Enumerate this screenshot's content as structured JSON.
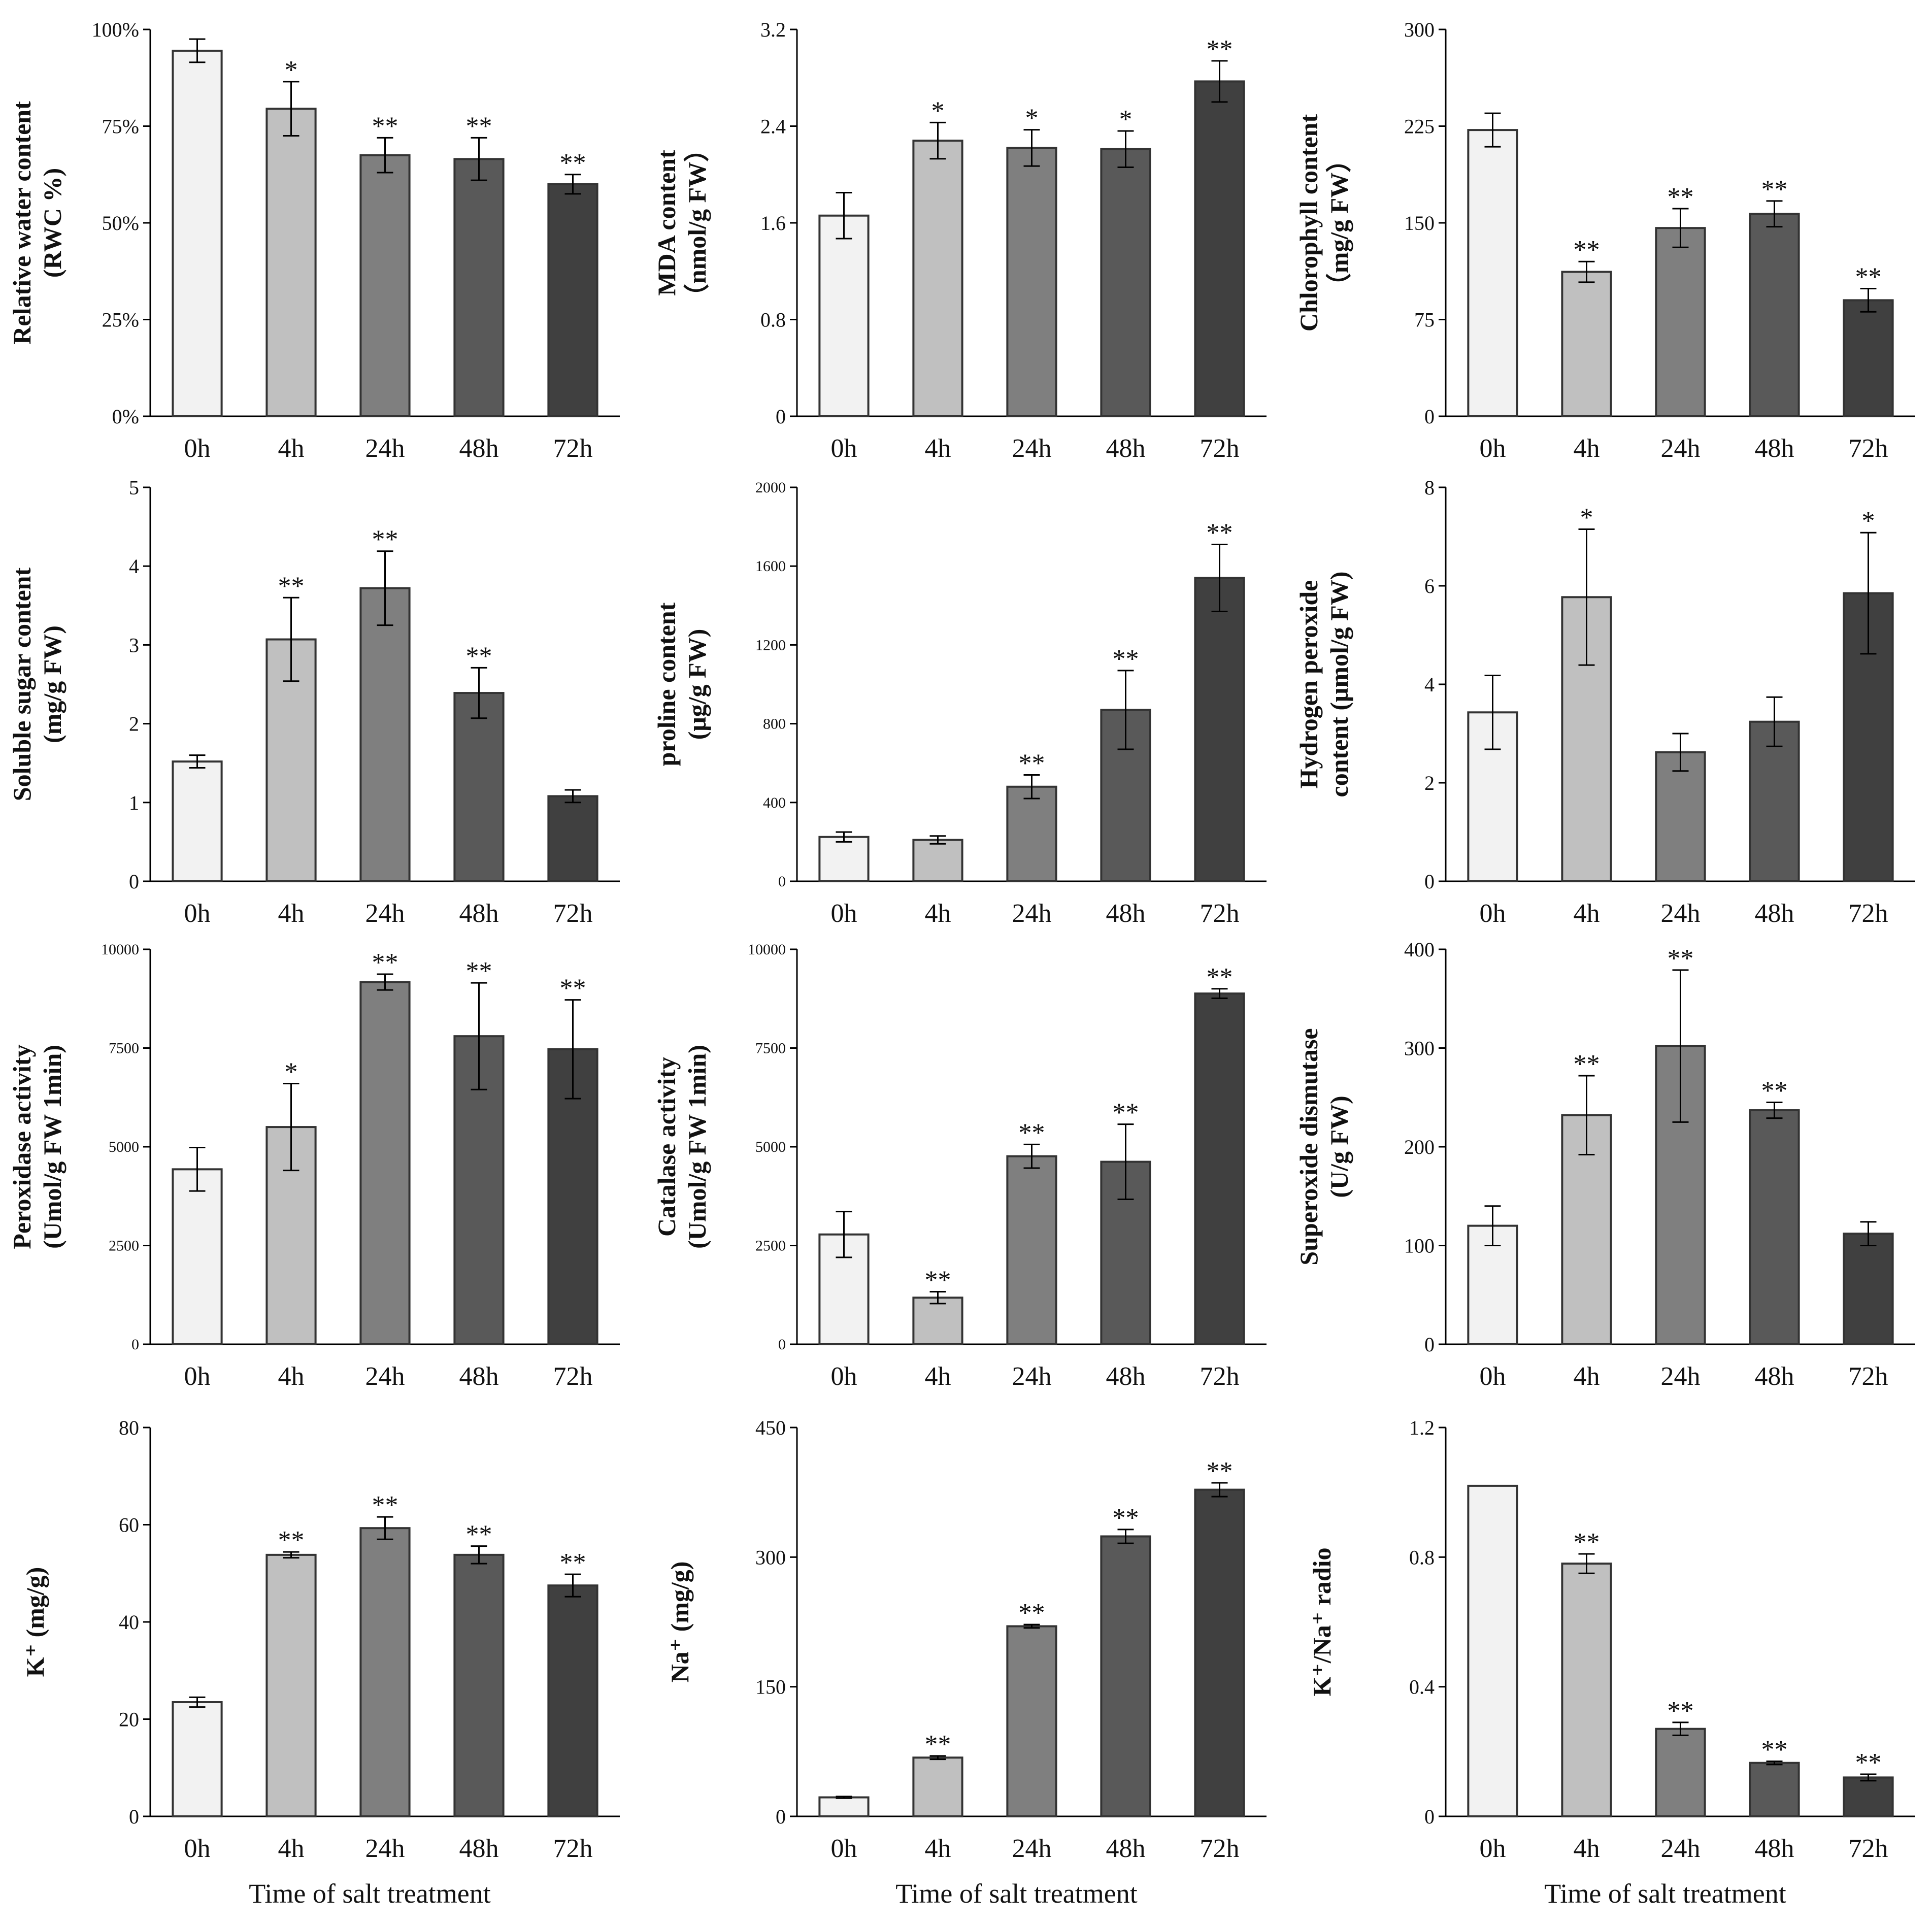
{
  "figure": {
    "categories": [
      "0h",
      "4h",
      "24h",
      "48h",
      "72h"
    ],
    "xlabel": "Time of salt treatment",
    "bar_colors": [
      "#f2f2f2",
      "#c0c0c0",
      "#7f7f7f",
      "#595959",
      "#404040"
    ]
  },
  "chart_data": [
    {
      "type": "bar",
      "id": "rwc",
      "ylabel_lines": [
        "Relative water content",
        "(RWC %)"
      ],
      "ylim": [
        0,
        100
      ],
      "ticks": [
        0,
        25,
        50,
        75,
        100
      ],
      "tick_labels": [
        "0%",
        "25%",
        "50%",
        "75%",
        "100%"
      ],
      "categories": [
        "0h",
        "4h",
        "24h",
        "48h",
        "72h"
      ],
      "values": [
        94.5,
        79.5,
        67.5,
        66.5,
        60.0
      ],
      "errors": [
        3.0,
        7.0,
        4.5,
        5.5,
        2.5
      ],
      "significance": [
        "",
        "*",
        "**",
        "**",
        "**"
      ]
    },
    {
      "type": "bar",
      "id": "mda",
      "ylabel_lines": [
        "MDA content",
        "（nmol/g FW）"
      ],
      "ylim": [
        0,
        3.2
      ],
      "ticks": [
        0,
        0.8,
        1.6,
        2.4,
        3.2
      ],
      "tick_labels": [
        "0",
        "0.8",
        "1.6",
        "2.4",
        "3.2"
      ],
      "categories": [
        "0h",
        "4h",
        "24h",
        "48h",
        "72h"
      ],
      "values": [
        1.66,
        2.28,
        2.22,
        2.21,
        2.77
      ],
      "errors": [
        0.19,
        0.15,
        0.15,
        0.15,
        0.17
      ],
      "significance": [
        "",
        "*",
        "*",
        "*",
        "**"
      ]
    },
    {
      "type": "bar",
      "id": "chlorophyll",
      "ylabel_lines": [
        "Chlorophyll content",
        "（mg/g FW）"
      ],
      "ylim": [
        0,
        300
      ],
      "ticks": [
        0,
        75,
        150,
        225,
        300
      ],
      "tick_labels": [
        "0",
        "75",
        "150",
        "225",
        "300"
      ],
      "categories": [
        "0h",
        "4h",
        "24h",
        "48h",
        "72h"
      ],
      "values": [
        222,
        112,
        146,
        157,
        90
      ],
      "errors": [
        13,
        8,
        15,
        10,
        9
      ],
      "significance": [
        "",
        "**",
        "**",
        "**",
        "**"
      ]
    },
    {
      "type": "bar",
      "id": "soluble-sugar",
      "ylabel_lines": [
        "Soluble sugar content",
        "(mg/g FW)"
      ],
      "ylim": [
        0,
        5
      ],
      "ticks": [
        0,
        1,
        2,
        3,
        4,
        5
      ],
      "tick_labels": [
        "0",
        "1",
        "2",
        "3",
        "4",
        "5"
      ],
      "categories": [
        "0h",
        "4h",
        "24h",
        "48h",
        "72h"
      ],
      "values": [
        1.52,
        3.07,
        3.72,
        2.39,
        1.08
      ],
      "errors": [
        0.08,
        0.53,
        0.47,
        0.32,
        0.08
      ],
      "significance": [
        "",
        "**",
        "**",
        "**",
        ""
      ]
    },
    {
      "type": "bar",
      "id": "proline",
      "ylabel_lines": [
        "proline content",
        "(μg/g FW)"
      ],
      "ylim": [
        0,
        2000
      ],
      "ticks": [
        0,
        400,
        800,
        1200,
        1600,
        2000
      ],
      "tick_labels": [
        "0",
        "400",
        "800",
        "1200",
        "1600",
        "2000"
      ],
      "categories": [
        "0h",
        "4h",
        "24h",
        "48h",
        "72h"
      ],
      "values": [
        225,
        210,
        480,
        870,
        1540
      ],
      "errors": [
        25,
        20,
        60,
        200,
        170
      ],
      "significance": [
        "",
        "",
        "**",
        "**",
        "**"
      ]
    },
    {
      "type": "bar",
      "id": "h2o2",
      "ylabel_lines": [
        "Hydrogen peroxide",
        "content (μmol/g FW)"
      ],
      "ylim": [
        0,
        8
      ],
      "ticks": [
        0,
        2,
        4,
        6,
        8
      ],
      "tick_labels": [
        "0",
        "2",
        "4",
        "6",
        "8"
      ],
      "categories": [
        "0h",
        "4h",
        "24h",
        "48h",
        "72h"
      ],
      "values": [
        3.43,
        5.77,
        2.62,
        3.24,
        5.85
      ],
      "errors": [
        0.75,
        1.38,
        0.38,
        0.5,
        1.23
      ],
      "significance": [
        "",
        "*",
        "",
        "",
        "*"
      ]
    },
    {
      "type": "bar",
      "id": "peroxidase",
      "ylabel_lines": [
        "Peroxidase activity",
        "(Umol/g FW 1min)"
      ],
      "ylim": [
        0,
        10000
      ],
      "ticks": [
        0,
        2500,
        5000,
        7500,
        10000
      ],
      "tick_labels": [
        "0",
        "2500",
        "5000",
        "7500",
        "10000"
      ],
      "categories": [
        "0h",
        "4h",
        "24h",
        "48h",
        "72h"
      ],
      "values": [
        4430,
        5500,
        9170,
        7800,
        7470
      ],
      "errors": [
        550,
        1100,
        200,
        1350,
        1250
      ],
      "significance": [
        "",
        "*",
        "**",
        "**",
        "**"
      ]
    },
    {
      "type": "bar",
      "id": "catalase",
      "ylabel_lines": [
        "Catalase activity",
        "(Umol/g FW 1min)"
      ],
      "ylim": [
        0,
        10000
      ],
      "ticks": [
        0,
        2500,
        5000,
        7500,
        10000
      ],
      "tick_labels": [
        "0",
        "2500",
        "5000",
        "7500",
        "10000"
      ],
      "categories": [
        "0h",
        "4h",
        "24h",
        "48h",
        "72h"
      ],
      "values": [
        2780,
        1180,
        4760,
        4620,
        8880
      ],
      "errors": [
        580,
        150,
        300,
        950,
        120
      ],
      "significance": [
        "",
        "**",
        "**",
        "**",
        "**"
      ]
    },
    {
      "type": "bar",
      "id": "sod",
      "ylabel_lines": [
        "Superoxide dismutase",
        "(U/g FW)"
      ],
      "ylim": [
        0,
        400
      ],
      "ticks": [
        0,
        100,
        200,
        300,
        400
      ],
      "tick_labels": [
        "0",
        "100",
        "200",
        "300",
        "400"
      ],
      "categories": [
        "0h",
        "4h",
        "24h",
        "48h",
        "72h"
      ],
      "values": [
        120,
        232,
        302,
        237,
        112
      ],
      "errors": [
        20,
        40,
        77,
        8,
        12
      ],
      "significance": [
        "",
        "**",
        "**",
        "**",
        ""
      ]
    },
    {
      "type": "bar",
      "id": "k",
      "ylabel_lines": [
        "K⁺ (mg/g)"
      ],
      "ylim": [
        0,
        80
      ],
      "ticks": [
        0,
        20,
        40,
        60,
        80
      ],
      "tick_labels": [
        "0",
        "20",
        "40",
        "60",
        "80"
      ],
      "categories": [
        "0h",
        "4h",
        "24h",
        "48h",
        "72h"
      ],
      "values": [
        23.5,
        53.8,
        59.3,
        53.8,
        47.5
      ],
      "errors": [
        1.0,
        0.6,
        2.3,
        1.8,
        2.3
      ],
      "significance": [
        "",
        "**",
        "**",
        "**",
        "**"
      ],
      "xlabel": "Time of salt treatment"
    },
    {
      "type": "bar",
      "id": "na",
      "ylabel_lines": [
        "Na⁺ (mg/g)"
      ],
      "ylim": [
        0,
        450
      ],
      "ticks": [
        0,
        150,
        300,
        450
      ],
      "tick_labels": [
        "0",
        "150",
        "300",
        "450"
      ],
      "categories": [
        "0h",
        "4h",
        "24h",
        "48h",
        "72h"
      ],
      "values": [
        22,
        68,
        220,
        324,
        378
      ],
      "errors": [
        1,
        2,
        2,
        8,
        8
      ],
      "significance": [
        "",
        "**",
        "**",
        "**",
        "**"
      ],
      "xlabel": "Time of salt treatment"
    },
    {
      "type": "bar",
      "id": "k-na-ratio",
      "ylabel_lines": [
        "K⁺/Na⁺ radio"
      ],
      "ylim": [
        0,
        1.2
      ],
      "ticks": [
        0,
        0.4,
        0.8,
        1.2
      ],
      "tick_labels": [
        "0",
        "0.4",
        "0.8",
        "1.2"
      ],
      "categories": [
        "0h",
        "4h",
        "24h",
        "48h",
        "72h"
      ],
      "values": [
        1.02,
        0.78,
        0.27,
        0.165,
        0.12
      ],
      "errors": [
        0.0,
        0.03,
        0.02,
        0.005,
        0.01
      ],
      "significance": [
        "",
        "**",
        "**",
        "**",
        "**"
      ],
      "xlabel": "Time of salt treatment"
    }
  ]
}
